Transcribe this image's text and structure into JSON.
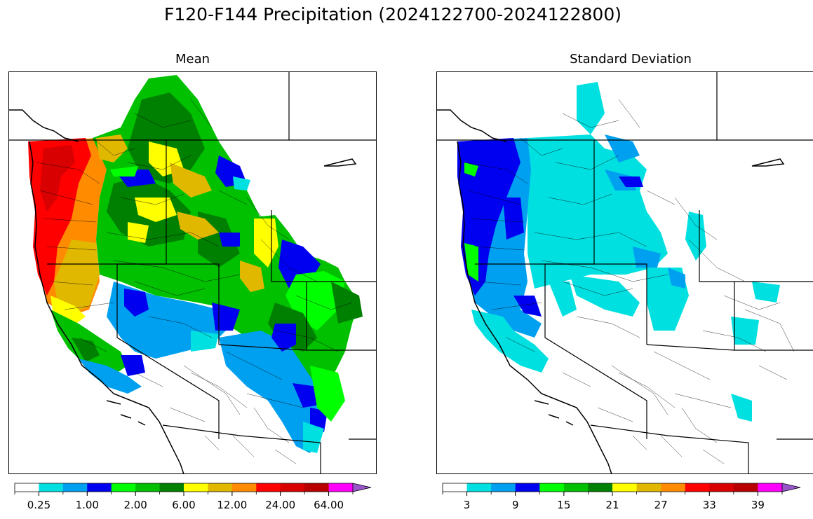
{
  "title": "F120-F144 Precipitation (2024122700-2024122800)",
  "panels": {
    "mean": {
      "title": "Mean",
      "colorbar": {
        "colors": [
          "#ffffff",
          "#00e0e0",
          "#00a0f0",
          "#0000f0",
          "#00ff00",
          "#00c000",
          "#008000",
          "#ffff00",
          "#e0b800",
          "#ff8c00",
          "#ff0000",
          "#d80000",
          "#b80000",
          "#ff00ff",
          "#9955cc"
        ],
        "tick_labels": [
          "0.25",
          "1.00",
          "2.00",
          "6.00",
          "12.00",
          "24.00",
          "64.00"
        ],
        "label_after_segment": [
          1,
          3,
          5,
          7,
          9,
          11,
          13
        ]
      }
    },
    "std": {
      "title": "Standard Deviation",
      "colorbar": {
        "colors": [
          "#ffffff",
          "#00e0e0",
          "#00a0f0",
          "#0000f0",
          "#00ff00",
          "#00c000",
          "#008000",
          "#ffff00",
          "#e0b800",
          "#ff8c00",
          "#ff0000",
          "#d80000",
          "#b80000",
          "#ff00ff",
          "#9955cc"
        ],
        "tick_labels": [
          "3",
          "9",
          "15",
          "21",
          "27",
          "33",
          "39"
        ],
        "label_after_segment": [
          1,
          3,
          5,
          7,
          9,
          11,
          13
        ]
      }
    }
  }
}
